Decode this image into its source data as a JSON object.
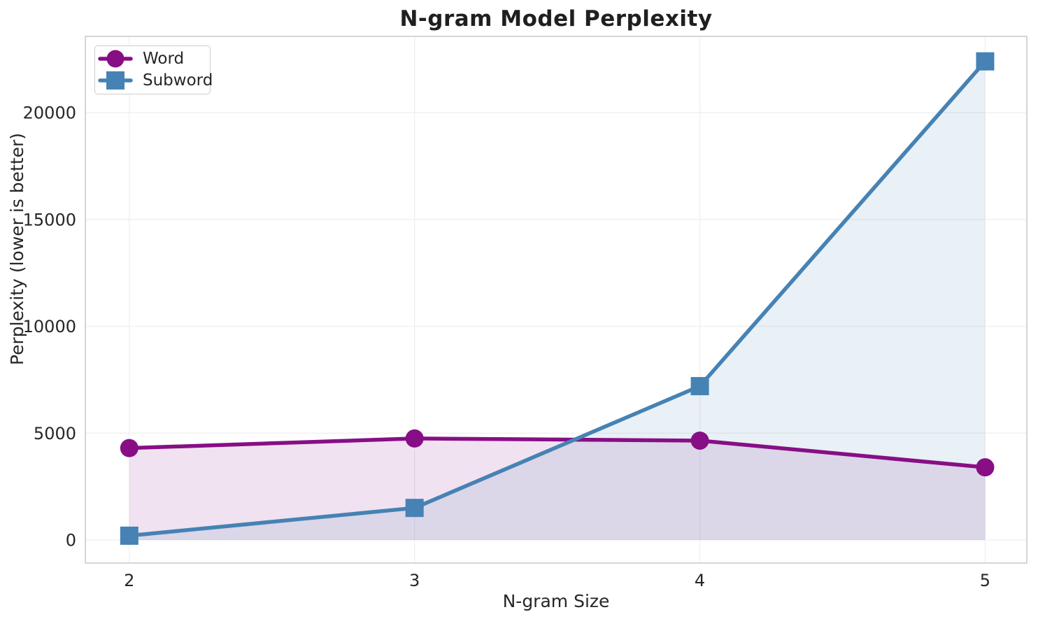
{
  "chart_data": {
    "type": "line",
    "title": "N-gram Model Perplexity",
    "xlabel": "N-gram Size",
    "ylabel": "Perplexity (lower is better)",
    "x": [
      2,
      3,
      4,
      5
    ],
    "xtick_labels": [
      "2",
      "3",
      "4",
      "5"
    ],
    "yticks": [
      0,
      5000,
      10000,
      15000,
      20000
    ],
    "ytick_labels": [
      "0",
      "5000",
      "10000",
      "15000",
      "20000"
    ],
    "xlim": [
      1.846,
      5.146
    ],
    "ylim": [
      -1080,
      23570
    ],
    "grid": true,
    "legend_position": "upper left",
    "series": [
      {
        "name": "Word",
        "marker": "circle",
        "color": "#870e85",
        "values": [
          4300,
          4750,
          4650,
          3400
        ]
      },
      {
        "name": "Subword",
        "marker": "square",
        "color": "#4682b4",
        "values": [
          200,
          1500,
          7200,
          22400
        ]
      }
    ],
    "fill_to_zero": true,
    "fill_opacity": 0.12,
    "style": {
      "line_width": 5.5,
      "marker_size": 26,
      "grid_color": "#efefef",
      "spine_color": "#cccccc",
      "text_color": "#262626",
      "title_color": "#1f1f1f",
      "background": "#ffffff",
      "legend_border": "#cccccc"
    }
  }
}
